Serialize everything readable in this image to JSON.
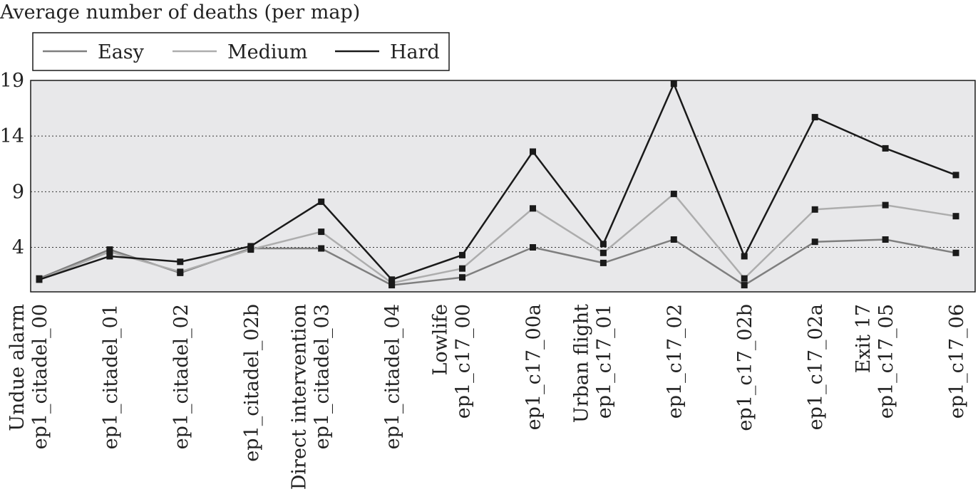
{
  "chart_data": {
    "type": "line",
    "ylabel": "Average number of deaths (per map)",
    "ylim": [
      0,
      19
    ],
    "yticks": [
      4,
      9,
      14,
      19
    ],
    "grid": "horizontal dotted",
    "legend_position": "top-left, above plot",
    "background_color": "#e8e8ea",
    "categories": [
      [
        "Undue alarm",
        "ep1_citadel_00"
      ],
      [
        "",
        "ep1_citadel_01"
      ],
      [
        "",
        "ep1_citadel_02"
      ],
      [
        "",
        "ep1_citadel_02b"
      ],
      [
        "Direct intervention",
        "ep1_citadel_03"
      ],
      [
        "",
        "ep1_citadel_04"
      ],
      [
        "Lowlife",
        "ep1_c17_00"
      ],
      [
        "",
        "ep1_c17_00a"
      ],
      [
        "Urban flight",
        "ep1_c17_01"
      ],
      [
        "",
        "ep1_c17_02"
      ],
      [
        "",
        "ep1_c17_02b"
      ],
      [
        "",
        "ep1_c17_02a"
      ],
      [
        "Exit 17",
        "ep1_c17_05"
      ],
      [
        "",
        "ep1_c17_06"
      ]
    ],
    "series": [
      {
        "name": "Easy",
        "color": "#7f7f7f",
        "values": [
          1.2,
          3.8,
          1.7,
          3.9,
          3.9,
          0.6,
          1.3,
          4.0,
          2.6,
          4.7,
          0.6,
          4.5,
          4.7,
          3.5
        ]
      },
      {
        "name": "Medium",
        "color": "#adadad",
        "values": [
          1.1,
          3.6,
          1.8,
          3.8,
          5.4,
          0.8,
          2.1,
          7.5,
          3.5,
          8.8,
          1.2,
          7.4,
          7.8,
          6.8
        ]
      },
      {
        "name": "Hard",
        "color": "#1a1a1a",
        "values": [
          1.1,
          3.2,
          2.7,
          4.1,
          8.1,
          1.1,
          3.3,
          12.6,
          4.3,
          18.7,
          3.2,
          15.7,
          12.9,
          10.5
        ]
      }
    ]
  }
}
